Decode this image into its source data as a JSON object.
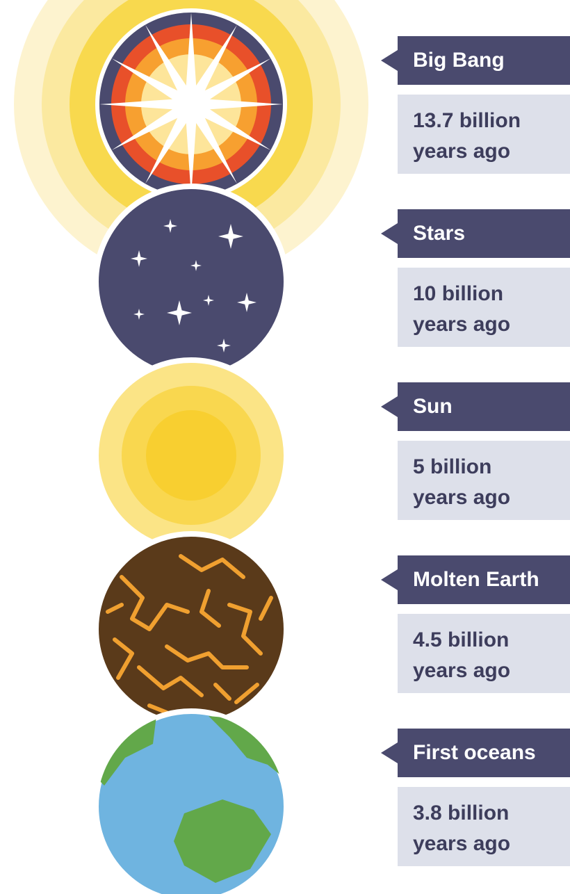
{
  "events": [
    {
      "name": "Big Bang",
      "time": "13.7 billion years ago"
    },
    {
      "name": "Stars",
      "time": "10 billion years ago"
    },
    {
      "name": "Sun",
      "time": "5 billion years ago"
    },
    {
      "name": "Molten Earth",
      "time": "4.5 billion years ago"
    },
    {
      "name": "First oceans",
      "time": "3.8 billion years ago"
    }
  ]
}
